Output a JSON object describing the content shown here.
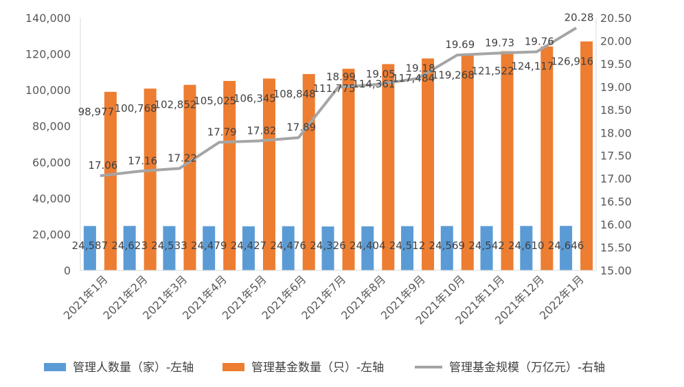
{
  "chart_data": {
    "type": "bar",
    "categories": [
      "2021年1月",
      "2021年2月",
      "2021年3月",
      "2021年4月",
      "2021年5月",
      "2021年6月",
      "2021年7月",
      "2021年8月",
      "2021年9月",
      "2021年10月",
      "2021年11月",
      "2021年12月",
      "2022年1月"
    ],
    "series": [
      {
        "name": "管理人数量（家）-左轴",
        "type": "bar",
        "axis": "left",
        "color": "#5B9BD5",
        "values": [
          24587,
          24623,
          24533,
          24479,
          24427,
          24476,
          24326,
          24404,
          24512,
          24569,
          24542,
          24610,
          24646
        ],
        "labels": [
          "24,587",
          "24,623",
          "24,533",
          "24,479",
          "24,427",
          "24,476",
          "24,326",
          "24,404",
          "24,512",
          "24,569",
          "24,542",
          "24,610",
          "24,646"
        ]
      },
      {
        "name": "管理基金数量（只）-左轴",
        "type": "bar",
        "axis": "left",
        "color": "#ED7D31",
        "values": [
          98977,
          100768,
          102852,
          105025,
          106345,
          108848,
          111775,
          114361,
          117484,
          119268,
          121522,
          124117,
          126916
        ],
        "labels": [
          "98,977",
          "100,768",
          "102,852",
          "105,025",
          "106,345",
          "108,848",
          "111,775",
          "114,361",
          "117,484",
          "119,268",
          "121,522",
          "124,117",
          "126,916"
        ]
      },
      {
        "name": "管理基金规模（万亿元）-右轴",
        "type": "line",
        "axis": "right",
        "color": "#A5A5A5",
        "values": [
          17.06,
          17.16,
          17.22,
          17.79,
          17.82,
          17.89,
          18.99,
          19.05,
          19.18,
          19.69,
          19.73,
          19.76,
          20.28
        ],
        "labels": [
          "17.06",
          "17.16",
          "17.22",
          "17.79",
          "17.82",
          "17.89",
          "18.99",
          "19.05",
          "19.18",
          "19.69",
          "19.73",
          "19.76",
          "20.28"
        ]
      }
    ],
    "left_axis": {
      "min": 0,
      "max": 140000,
      "ticks": [
        "0",
        "20,000",
        "40,000",
        "60,000",
        "80,000",
        "100,000",
        "120,000",
        "140,000"
      ]
    },
    "right_axis": {
      "min": 15.0,
      "max": 20.5,
      "ticks": [
        "15.00",
        "15.50",
        "16.00",
        "16.50",
        "17.00",
        "17.50",
        "18.00",
        "18.50",
        "19.00",
        "19.50",
        "20.00",
        "20.50"
      ]
    },
    "grid": false,
    "legend_position": "bottom"
  }
}
